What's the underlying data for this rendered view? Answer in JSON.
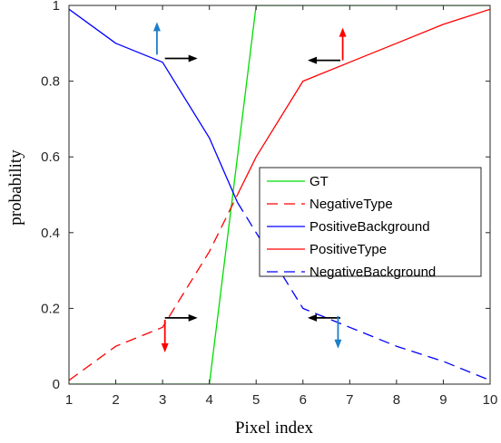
{
  "chart_data": {
    "type": "line",
    "xlabel": "Pixel index",
    "ylabel": "probability",
    "xlim": [
      1,
      10
    ],
    "ylim": [
      0,
      1
    ],
    "x_ticks": [
      "1",
      "2",
      "3",
      "4",
      "5",
      "6",
      "7",
      "8",
      "9",
      "10"
    ],
    "y_ticks": [
      "0",
      "0.2",
      "0.4",
      "0.6",
      "0.8",
      "1"
    ],
    "grid": false,
    "legend_position": "center-right",
    "series": [
      {
        "name": "GT",
        "color": "#00dd00",
        "dash": "solid",
        "x": [
          1,
          4,
          5,
          10
        ],
        "y": [
          0,
          0,
          1,
          1
        ]
      },
      {
        "name": "NegativeType",
        "color": "#ff0000",
        "dash": "dashed",
        "x": [
          1,
          2,
          3,
          4,
          4.6
        ],
        "y": [
          0.01,
          0.1,
          0.15,
          0.35,
          0.5
        ]
      },
      {
        "name": "PositiveBackground",
        "color": "#0000ff",
        "dash": "solid",
        "x": [
          1,
          2,
          3,
          4,
          4.6
        ],
        "y": [
          0.99,
          0.9,
          0.85,
          0.65,
          0.48
        ]
      },
      {
        "name": "PositiveType",
        "color": "#ff0000",
        "dash": "solid",
        "x": [
          4.6,
          5,
          6,
          7,
          8,
          9,
          10
        ],
        "y": [
          0.5,
          0.6,
          0.8,
          0.85,
          0.9,
          0.95,
          0.99
        ]
      },
      {
        "name": "NegativeBackground",
        "color": "#0000ff",
        "dash": "dashed",
        "x": [
          4.6,
          5,
          6,
          7,
          8,
          9,
          10
        ],
        "y": [
          0.48,
          0.4,
          0.2,
          0.15,
          0.1,
          0.06,
          0.01
        ]
      }
    ],
    "annotations": [
      {
        "kind": "arrow",
        "direction": "up",
        "color": "#1e7ec8",
        "x": 2.88,
        "y": 0.87
      },
      {
        "kind": "arrow",
        "direction": "right",
        "color": "#000000",
        "x": 3.05,
        "y": 0.86
      },
      {
        "kind": "arrow",
        "direction": "up",
        "color": "#ff0000",
        "x": 6.85,
        "y": 0.855
      },
      {
        "kind": "arrow",
        "direction": "left",
        "color": "#000000",
        "x": 6.8,
        "y": 0.855
      },
      {
        "kind": "arrow",
        "direction": "right",
        "color": "#000000",
        "x": 3.05,
        "y": 0.175
      },
      {
        "kind": "arrow",
        "direction": "down",
        "color": "#ff0000",
        "x": 3.05,
        "y": 0.17
      },
      {
        "kind": "arrow",
        "direction": "left",
        "color": "#000000",
        "x": 6.8,
        "y": 0.175
      },
      {
        "kind": "arrow",
        "direction": "down",
        "color": "#1e7ec8",
        "x": 6.75,
        "y": 0.18
      }
    ]
  }
}
